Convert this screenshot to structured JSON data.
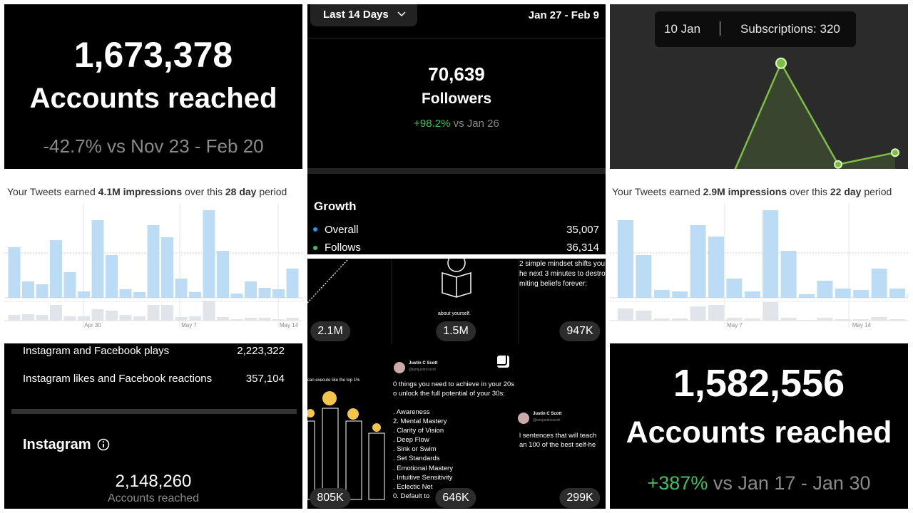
{
  "reach_summary": {
    "value": "1,673,378",
    "label": "Accounts reached",
    "change": "-42.7% vs Nov 23 - Feb 20"
  },
  "impressions_28": {
    "prefix": "Your Tweets earned",
    "amount": "4.1M impressions",
    "middle": "over this",
    "span": "28 day",
    "suffix": "period",
    "dates": [
      "Apr 30",
      "May 7",
      "May 14"
    ],
    "bars": [
      71,
      23,
      19,
      81,
      36,
      9,
      109,
      60,
      12,
      8,
      102,
      85,
      27,
      8,
      123,
      66,
      6,
      23,
      14,
      12,
      41
    ],
    "secondary_bars": [
      8,
      9,
      8,
      22,
      6,
      6,
      16,
      14,
      8,
      6,
      22,
      22,
      5,
      6,
      28,
      5,
      2,
      4,
      4,
      2,
      4
    ]
  },
  "followers": {
    "range_button": "Last 14 Days",
    "date_range": "Jan 27 - Feb 9",
    "count": "70,639",
    "label": "Followers",
    "change": "+98.2%",
    "comparison": "vs Jan 26",
    "growth_title": "Growth",
    "growth_rows": [
      {
        "label": "Overall",
        "value": "35,007"
      },
      {
        "label": "Follows",
        "value": "36,314"
      }
    ]
  },
  "posts": {
    "views": [
      "2.1M",
      "1.5M",
      "947K",
      "805K",
      "646K",
      "299K"
    ],
    "about": "about yourself.",
    "mindset": [
      "2 simple mindset shifts you",
      "he next 3 minutes to destroy",
      "miting beliefs forever:"
    ],
    "top": "can execute like the top 1%",
    "authors": [
      {
        "name": "Justin C Scott",
        "handle": "@iamjustincscott"
      },
      {
        "name": "Justin C Scott",
        "handle": "@iamjustincscott"
      }
    ],
    "things": [
      "0 things you need to achieve in your 20s",
      "o unlock the full potential of your 30s:"
    ],
    "list": [
      ". Awareness",
      "2. Mental Mastery",
      ". Clarity of Vision",
      ". Deep Flow",
      ". Sink or Swim",
      ". Set Standards",
      ". Emotional Mastery",
      ". Intuitive Sensitivity",
      ". Eclectic Net",
      "0. Default to"
    ],
    "sentences": [
      "l sentences that will teach",
      "an 100 of the best self-he"
    ]
  },
  "platform_stats": {
    "rows": [
      {
        "label": "Instagram and Facebook plays",
        "value": "2,223,322"
      },
      {
        "label": "Instagram likes and Facebook reactions",
        "value": "357,104"
      }
    ],
    "section": "Instagram",
    "reach": "2,148,260",
    "reach_label": "Accounts reached"
  },
  "subscriptions": {
    "tooltip_date": "10 Jan",
    "tooltip_value": "Subscriptions: 320",
    "values": [
      40,
      320,
      105,
      130
    ]
  },
  "impressions_22": {
    "prefix": "Your Tweets earned",
    "amount": "2.9M impressions",
    "middle": "over this",
    "span": "22 day",
    "suffix": "period",
    "dates": [
      "May 7",
      "May 14"
    ],
    "bars": [
      109,
      60,
      11,
      9,
      102,
      86,
      27,
      9,
      123,
      66,
      5,
      24,
      13,
      11,
      41,
      13,
      6
    ],
    "secondary_bars": [
      17,
      14,
      3,
      3,
      20,
      22,
      4,
      3,
      26,
      4,
      1,
      4,
      2,
      2,
      5,
      2,
      1
    ]
  },
  "reach_recent": {
    "value": "1,582,556",
    "label": "Accounts reached",
    "change": "+387%",
    "comparison": "vs Jan 17 - Jan 30"
  }
}
